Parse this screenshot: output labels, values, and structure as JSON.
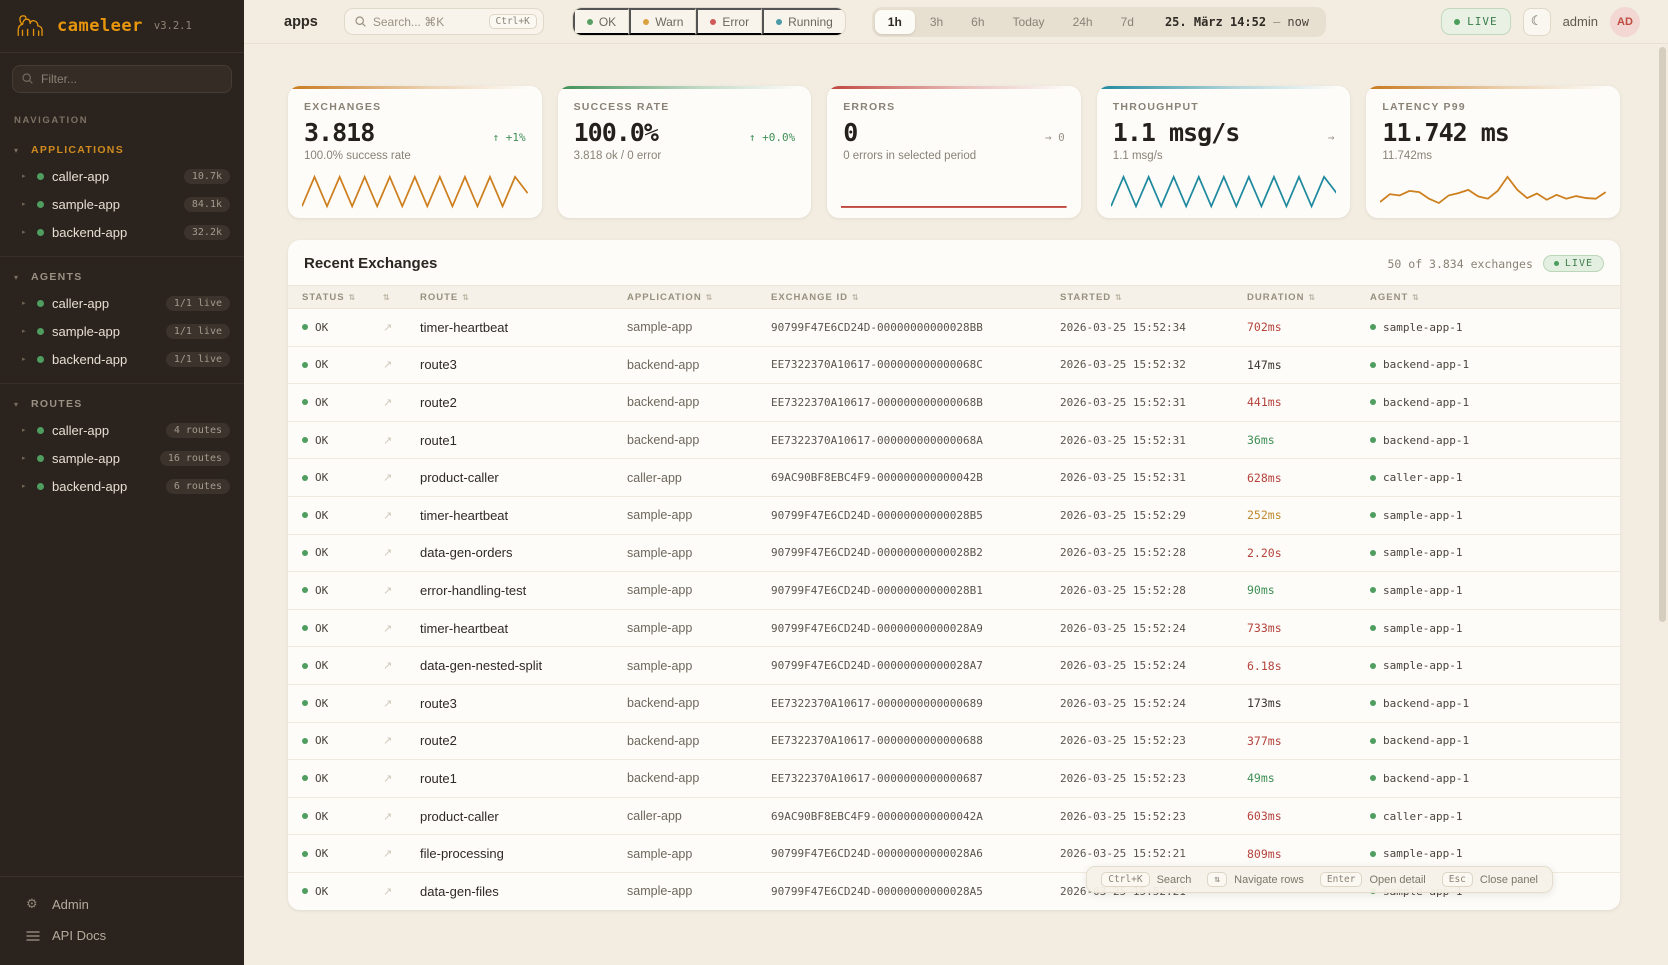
{
  "brand": {
    "name": "cameleer",
    "version": "v3.2.1"
  },
  "sidebar": {
    "filter_placeholder": "Filter...",
    "nav_label": "NAVIGATION",
    "sections": [
      {
        "label": "APPLICATIONS",
        "accent": true,
        "items": [
          {
            "name": "caller-app",
            "badge": "10.7k"
          },
          {
            "name": "sample-app",
            "badge": "84.1k"
          },
          {
            "name": "backend-app",
            "badge": "32.2k"
          }
        ]
      },
      {
        "label": "AGENTS",
        "accent": false,
        "items": [
          {
            "name": "caller-app",
            "badge": "1/1 live"
          },
          {
            "name": "sample-app",
            "badge": "1/1 live"
          },
          {
            "name": "backend-app",
            "badge": "1/1 live"
          }
        ]
      },
      {
        "label": "ROUTES",
        "accent": false,
        "items": [
          {
            "name": "caller-app",
            "badge": "4 routes"
          },
          {
            "name": "sample-app",
            "badge": "16 routes"
          },
          {
            "name": "backend-app",
            "badge": "6 routes"
          }
        ]
      }
    ],
    "footer": [
      {
        "icon": "gear",
        "label": "Admin"
      },
      {
        "icon": "menu",
        "label": "API Docs"
      }
    ]
  },
  "topbar": {
    "context_label": "apps",
    "search": {
      "placeholder": "Search... ⌘K",
      "kbd": "Ctrl+K"
    },
    "status_filters": [
      {
        "label": "OK",
        "color": "#5a9e63"
      },
      {
        "label": "Warn",
        "color": "#d9a23f"
      },
      {
        "label": "Error",
        "color": "#d05a5a"
      },
      {
        "label": "Running",
        "color": "#4a9aa8"
      }
    ],
    "time_ranges": [
      "1h",
      "3h",
      "6h",
      "Today",
      "24h",
      "7d"
    ],
    "active_range": "1h",
    "range_display": {
      "from": "25. März 14:52",
      "sep": "—",
      "to": "now"
    },
    "live_label": "LIVE",
    "user": {
      "name": "admin",
      "initials": "AD"
    }
  },
  "kpis": [
    {
      "label": "EXCHANGES",
      "value": "3.818",
      "delta": "↑ +1%",
      "delta_color": "green",
      "subtitle": "100.0% success rate",
      "accent": "#c8791d",
      "spark_color": "#cd7f1e",
      "spark": [
        0.05,
        0.95,
        0.05,
        0.95,
        0.05,
        0.95,
        0.05,
        0.95,
        0.05,
        0.95,
        0.05,
        0.95,
        0.05,
        0.95,
        0.05,
        0.95,
        0.05,
        0.95,
        0.45
      ]
    },
    {
      "label": "SUCCESS RATE",
      "value": "100.0%",
      "delta": "↑ +0.0%",
      "delta_color": "green",
      "subtitle": "3.818 ok / 0 error",
      "accent": "#3f8f56",
      "spark_color": "#3f8f56",
      "spark": []
    },
    {
      "label": "ERRORS",
      "value": "0",
      "delta": "→ 0",
      "delta_color": "gray",
      "subtitle": "0 errors in selected period",
      "accent": "#c0453e",
      "spark_color": "#c0453e",
      "spark": [
        0.03,
        0.03
      ]
    },
    {
      "label": "THROUGHPUT",
      "value": "1.1 msg/s",
      "delta": "→",
      "delta_color": "gray",
      "subtitle": "1.1 msg/s",
      "accent": "#1f8a9e",
      "spark_color": "#1f8a9e",
      "spark": [
        0.05,
        0.95,
        0.05,
        0.95,
        0.05,
        0.95,
        0.05,
        0.95,
        0.05,
        0.95,
        0.05,
        0.95,
        0.05,
        0.95,
        0.05,
        0.95,
        0.05,
        0.95,
        0.45
      ]
    },
    {
      "label": "LATENCY P99",
      "value": "11.742 ms",
      "delta": "",
      "delta_color": "gray",
      "subtitle": "11.742ms",
      "accent": "#c8791d",
      "spark_color": "#cd7f1e",
      "spark": [
        0.18,
        0.42,
        0.38,
        0.52,
        0.48,
        0.28,
        0.15,
        0.38,
        0.45,
        0.55,
        0.35,
        0.28,
        0.52,
        0.95,
        0.55,
        0.3,
        0.44,
        0.25,
        0.4,
        0.28,
        0.36,
        0.3,
        0.28,
        0.48
      ]
    }
  ],
  "table": {
    "title": "Recent Exchanges",
    "summary": "50 of 3.834 exchanges",
    "live_label": "LIVE",
    "columns": [
      "STATUS",
      "",
      "ROUTE",
      "APPLICATION",
      "EXCHANGE ID",
      "STARTED",
      "DURATION",
      "AGENT"
    ],
    "rows": [
      {
        "status": "OK",
        "route": "timer-heartbeat",
        "app": "sample-app",
        "id": "90799F47E6CD24D-00000000000028BB",
        "started": "2026-03-25 15:52:34",
        "duration": "702ms",
        "duration_color": "red",
        "agent": "sample-app-1"
      },
      {
        "status": "OK",
        "route": "route3",
        "app": "backend-app",
        "id": "EE7322370A10617-000000000000068C",
        "started": "2026-03-25 15:52:32",
        "duration": "147ms",
        "duration_color": "default",
        "agent": "backend-app-1"
      },
      {
        "status": "OK",
        "route": "route2",
        "app": "backend-app",
        "id": "EE7322370A10617-000000000000068B",
        "started": "2026-03-25 15:52:31",
        "duration": "441ms",
        "duration_color": "red",
        "agent": "backend-app-1"
      },
      {
        "status": "OK",
        "route": "route1",
        "app": "backend-app",
        "id": "EE7322370A10617-000000000000068A",
        "started": "2026-03-25 15:52:31",
        "duration": "36ms",
        "duration_color": "green",
        "agent": "backend-app-1"
      },
      {
        "status": "OK",
        "route": "product-caller",
        "app": "caller-app",
        "id": "69AC90BF8EBC4F9-000000000000042B",
        "started": "2026-03-25 15:52:31",
        "duration": "628ms",
        "duration_color": "red",
        "agent": "caller-app-1"
      },
      {
        "status": "OK",
        "route": "timer-heartbeat",
        "app": "sample-app",
        "id": "90799F47E6CD24D-00000000000028B5",
        "started": "2026-03-25 15:52:29",
        "duration": "252ms",
        "duration_color": "amber",
        "agent": "sample-app-1"
      },
      {
        "status": "OK",
        "route": "data-gen-orders",
        "app": "sample-app",
        "id": "90799F47E6CD24D-00000000000028B2",
        "started": "2026-03-25 15:52:28",
        "duration": "2.20s",
        "duration_color": "red",
        "agent": "sample-app-1"
      },
      {
        "status": "OK",
        "route": "error-handling-test",
        "app": "sample-app",
        "id": "90799F47E6CD24D-00000000000028B1",
        "started": "2026-03-25 15:52:28",
        "duration": "90ms",
        "duration_color": "green",
        "agent": "sample-app-1"
      },
      {
        "status": "OK",
        "route": "timer-heartbeat",
        "app": "sample-app",
        "id": "90799F47E6CD24D-00000000000028A9",
        "started": "2026-03-25 15:52:24",
        "duration": "733ms",
        "duration_color": "red",
        "agent": "sample-app-1"
      },
      {
        "status": "OK",
        "route": "data-gen-nested-split",
        "app": "sample-app",
        "id": "90799F47E6CD24D-00000000000028A7",
        "started": "2026-03-25 15:52:24",
        "duration": "6.18s",
        "duration_color": "red",
        "agent": "sample-app-1"
      },
      {
        "status": "OK",
        "route": "route3",
        "app": "backend-app",
        "id": "EE7322370A10617-0000000000000689",
        "started": "2026-03-25 15:52:24",
        "duration": "173ms",
        "duration_color": "default",
        "agent": "backend-app-1"
      },
      {
        "status": "OK",
        "route": "route2",
        "app": "backend-app",
        "id": "EE7322370A10617-0000000000000688",
        "started": "2026-03-25 15:52:23",
        "duration": "377ms",
        "duration_color": "red",
        "agent": "backend-app-1"
      },
      {
        "status": "OK",
        "route": "route1",
        "app": "backend-app",
        "id": "EE7322370A10617-0000000000000687",
        "started": "2026-03-25 15:52:23",
        "duration": "49ms",
        "duration_color": "green",
        "agent": "backend-app-1"
      },
      {
        "status": "OK",
        "route": "product-caller",
        "app": "caller-app",
        "id": "69AC90BF8EBC4F9-000000000000042A",
        "started": "2026-03-25 15:52:23",
        "duration": "603ms",
        "duration_color": "red",
        "agent": "caller-app-1"
      },
      {
        "status": "OK",
        "route": "file-processing",
        "app": "sample-app",
        "id": "90799F47E6CD24D-00000000000028A6",
        "started": "2026-03-25 15:52:21",
        "duration": "809ms",
        "duration_color": "red",
        "agent": "sample-app-1"
      },
      {
        "status": "OK",
        "route": "data-gen-files",
        "app": "sample-app",
        "id": "90799F47E6CD24D-00000000000028A5",
        "started": "2026-03-25 15:52:21",
        "duration": "",
        "duration_color": "default",
        "agent": "sample-app-1"
      }
    ]
  },
  "shortcuts": [
    {
      "key": "Ctrl+K",
      "label": "Search"
    },
    {
      "key": "⇅",
      "label": "Navigate rows"
    },
    {
      "key": "Enter",
      "label": "Open detail"
    },
    {
      "key": "Esc",
      "label": "Close panel"
    }
  ]
}
